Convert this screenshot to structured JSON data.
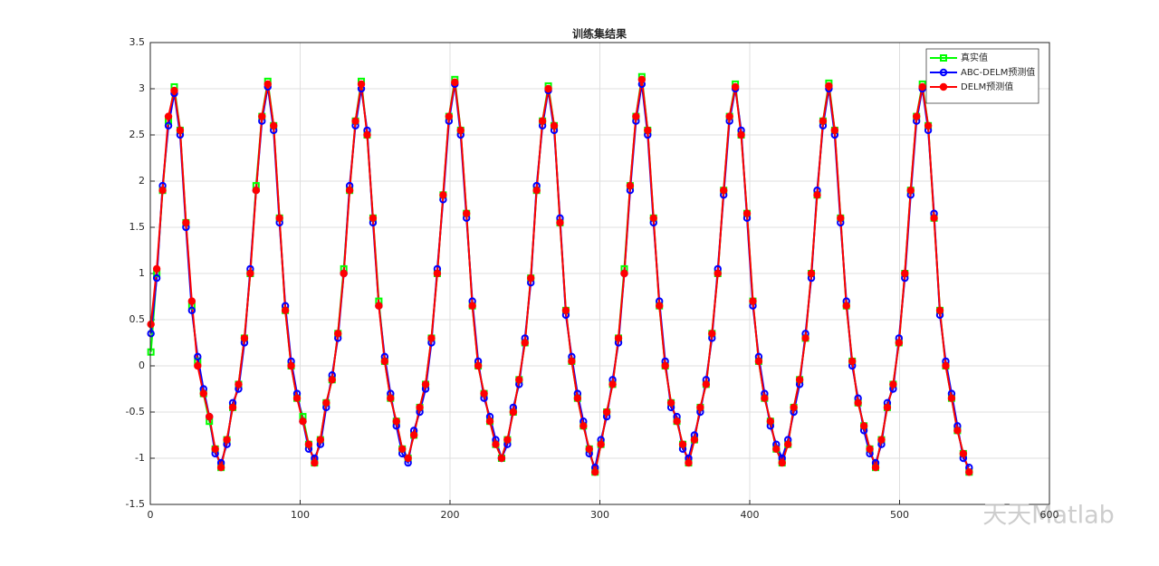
{
  "chart_data": {
    "type": "line",
    "title": "训练集结果",
    "x": [
      0.4,
      4.3,
      8.2,
      12.1,
      16,
      19.9,
      23.8,
      27.7,
      31.6,
      35.5,
      39.4,
      43.3,
      47.2,
      51.1,
      55,
      58.9,
      62.8,
      66.7,
      70.6,
      74.5,
      78.4,
      82.3,
      86.2,
      90.1,
      94,
      97.9,
      101.8,
      105.7,
      109.6,
      113.5,
      117.4,
      121.3,
      125.2,
      129.1,
      133,
      136.9,
      140.8,
      144.7,
      148.6,
      152.5,
      156.4,
      160.3,
      164.2,
      168.1,
      172,
      175.9,
      179.8,
      183.7,
      187.6,
      191.5,
      195.4,
      199.3,
      203.2,
      207.1,
      211,
      214.9,
      218.8,
      222.7,
      226.6,
      230.5,
      234.4,
      238.3,
      242.2,
      246.1,
      250,
      253.9,
      257.8,
      261.7,
      265.6,
      269.5,
      273.4,
      277.3,
      281.2,
      285.1,
      289,
      292.9,
      296.8,
      300.7,
      304.6,
      308.5,
      312.4,
      316.3,
      320.2,
      324.1,
      328,
      331.9,
      335.8,
      339.7,
      343.6,
      347.5,
      351.4,
      355.3,
      359.2,
      363.1,
      367,
      370.9,
      374.8,
      378.7,
      382.6,
      386.5,
      390.4,
      394.3,
      398.2,
      402.1,
      406,
      409.9,
      413.8,
      417.7,
      421.6,
      425.5,
      429.4,
      433.3,
      437.2,
      441.1,
      445,
      448.9,
      452.8,
      456.7,
      460.6,
      464.5,
      468.4,
      472.3,
      476.2,
      480.1,
      484,
      487.9,
      491.8,
      495.7,
      499.6,
      503.5,
      507.4,
      511.3,
      515.2,
      519.1,
      523,
      526.9,
      530.8,
      534.7,
      538.6,
      542.5,
      546.4
    ],
    "series": [
      {
        "name": "真实值",
        "color": "#00ff00",
        "marker": "square",
        "filled": false,
        "values": [
          0.15,
          1.0,
          1.9,
          2.65,
          3.02,
          2.55,
          1.55,
          0.65,
          0.05,
          -0.3,
          -0.6,
          -0.9,
          -1.1,
          -0.8,
          -0.45,
          -0.2,
          0.3,
          1.0,
          1.95,
          2.7,
          3.08,
          2.6,
          1.6,
          0.6,
          0.0,
          -0.35,
          -0.55,
          -0.85,
          -1.05,
          -0.8,
          -0.4,
          -0.15,
          0.35,
          1.05,
          1.9,
          2.65,
          3.08,
          2.5,
          1.6,
          0.7,
          0.05,
          -0.35,
          -0.6,
          -0.9,
          -1.0,
          -0.75,
          -0.45,
          -0.2,
          0.3,
          1.0,
          1.85,
          2.7,
          3.1,
          2.55,
          1.65,
          0.65,
          0.0,
          -0.3,
          -0.6,
          -0.85,
          -1.0,
          -0.8,
          -0.5,
          -0.15,
          0.25,
          0.95,
          1.9,
          2.65,
          3.03,
          2.6,
          1.55,
          0.6,
          0.05,
          -0.35,
          -0.65,
          -0.9,
          -1.15,
          -0.85,
          -0.5,
          -0.2,
          0.3,
          1.05,
          1.95,
          2.7,
          3.13,
          2.55,
          1.6,
          0.65,
          0.0,
          -0.4,
          -0.6,
          -0.85,
          -1.05,
          -0.8,
          -0.45,
          -0.2,
          0.35,
          1.0,
          1.9,
          2.7,
          3.05,
          2.5,
          1.65,
          0.7,
          0.05,
          -0.35,
          -0.6,
          -0.9,
          -1.05,
          -0.85,
          -0.45,
          -0.15,
          0.3,
          1.0,
          1.85,
          2.65,
          3.06,
          2.55,
          1.6,
          0.65,
          0.05,
          -0.4,
          -0.65,
          -0.9,
          -1.1,
          -0.8,
          -0.45,
          -0.2,
          0.25,
          1.0,
          1.9,
          2.7,
          3.05,
          2.6,
          1.6,
          0.6,
          0.0,
          -0.35,
          -0.7,
          -0.95,
          -1.15
        ]
      },
      {
        "name": "ABC-DELM预测值",
        "color": "#0000ff",
        "marker": "circle",
        "filled": false,
        "values": [
          0.35,
          0.95,
          1.95,
          2.6,
          2.95,
          2.5,
          1.5,
          0.6,
          0.1,
          -0.25,
          -0.55,
          -0.95,
          -1.05,
          -0.85,
          -0.4,
          -0.25,
          0.25,
          1.05,
          1.9,
          2.65,
          3.02,
          2.55,
          1.55,
          0.65,
          0.05,
          -0.3,
          -0.6,
          -0.9,
          -1.0,
          -0.85,
          -0.45,
          -0.1,
          0.3,
          1.0,
          1.95,
          2.6,
          3.0,
          2.55,
          1.55,
          0.65,
          0.1,
          -0.3,
          -0.65,
          -0.95,
          -1.05,
          -0.7,
          -0.5,
          -0.25,
          0.25,
          1.05,
          1.8,
          2.65,
          3.05,
          2.5,
          1.6,
          0.7,
          0.05,
          -0.35,
          -0.55,
          -0.8,
          -1.0,
          -0.85,
          -0.45,
          -0.2,
          0.3,
          0.9,
          1.95,
          2.6,
          2.98,
          2.55,
          1.6,
          0.55,
          0.1,
          -0.3,
          -0.6,
          -0.95,
          -1.1,
          -0.8,
          -0.55,
          -0.15,
          0.25,
          1.0,
          1.9,
          2.65,
          3.05,
          2.5,
          1.55,
          0.7,
          0.05,
          -0.45,
          -0.55,
          -0.9,
          -1.0,
          -0.75,
          -0.5,
          -0.15,
          0.3,
          1.05,
          1.85,
          2.65,
          3.0,
          2.55,
          1.6,
          0.65,
          0.1,
          -0.3,
          -0.65,
          -0.85,
          -1.0,
          -0.8,
          -0.5,
          -0.2,
          0.35,
          0.95,
          1.9,
          2.6,
          3.0,
          2.5,
          1.55,
          0.7,
          0.0,
          -0.35,
          -0.7,
          -0.95,
          -1.05,
          -0.85,
          -0.4,
          -0.25,
          0.3,
          0.95,
          1.85,
          2.65,
          3.0,
          2.55,
          1.65,
          0.55,
          0.05,
          -0.3,
          -0.65,
          -1.0,
          -1.1
        ]
      },
      {
        "name": "DELM预测值",
        "color": "#ff0000",
        "marker": "circle",
        "filled": true,
        "values": [
          0.45,
          1.05,
          1.9,
          2.7,
          2.98,
          2.55,
          1.55,
          0.7,
          0.0,
          -0.3,
          -0.55,
          -0.9,
          -1.1,
          -0.8,
          -0.45,
          -0.2,
          0.3,
          1.0,
          1.9,
          2.7,
          3.05,
          2.6,
          1.6,
          0.6,
          0.0,
          -0.35,
          -0.6,
          -0.85,
          -1.05,
          -0.8,
          -0.4,
          -0.15,
          0.35,
          1.0,
          1.9,
          2.65,
          3.05,
          2.5,
          1.6,
          0.65,
          0.05,
          -0.35,
          -0.6,
          -0.9,
          -1.0,
          -0.75,
          -0.45,
          -0.2,
          0.3,
          1.0,
          1.85,
          2.7,
          3.07,
          2.55,
          1.65,
          0.65,
          0.0,
          -0.3,
          -0.6,
          -0.85,
          -1.0,
          -0.8,
          -0.5,
          -0.15,
          0.25,
          0.95,
          1.9,
          2.65,
          3.0,
          2.6,
          1.55,
          0.6,
          0.05,
          -0.35,
          -0.65,
          -0.9,
          -1.15,
          -0.85,
          -0.5,
          -0.2,
          0.3,
          1.0,
          1.95,
          2.7,
          3.1,
          2.55,
          1.6,
          0.65,
          0.0,
          -0.4,
          -0.6,
          -0.85,
          -1.05,
          -0.8,
          -0.45,
          -0.2,
          0.35,
          1.0,
          1.9,
          2.7,
          3.02,
          2.5,
          1.65,
          0.7,
          0.05,
          -0.35,
          -0.6,
          -0.9,
          -1.05,
          -0.85,
          -0.45,
          -0.15,
          0.3,
          1.0,
          1.85,
          2.65,
          3.03,
          2.55,
          1.6,
          0.65,
          0.05,
          -0.4,
          -0.65,
          -0.9,
          -1.1,
          -0.8,
          -0.45,
          -0.2,
          0.25,
          1.0,
          1.9,
          2.7,
          3.02,
          2.6,
          1.6,
          0.6,
          0.0,
          -0.35,
          -0.7,
          -0.95,
          -1.15
        ]
      }
    ],
    "xlim": [
      0,
      600
    ],
    "xticks": [
      0,
      100,
      200,
      300,
      400,
      500,
      600
    ],
    "ylim": [
      -1.5,
      3.5
    ],
    "yticks": [
      -1.5,
      -1,
      -0.5,
      0,
      0.5,
      1,
      1.5,
      2,
      2.5,
      3,
      3.5
    ],
    "grid": true,
    "legend": "northeast",
    "watermark": "天天Matlab"
  }
}
